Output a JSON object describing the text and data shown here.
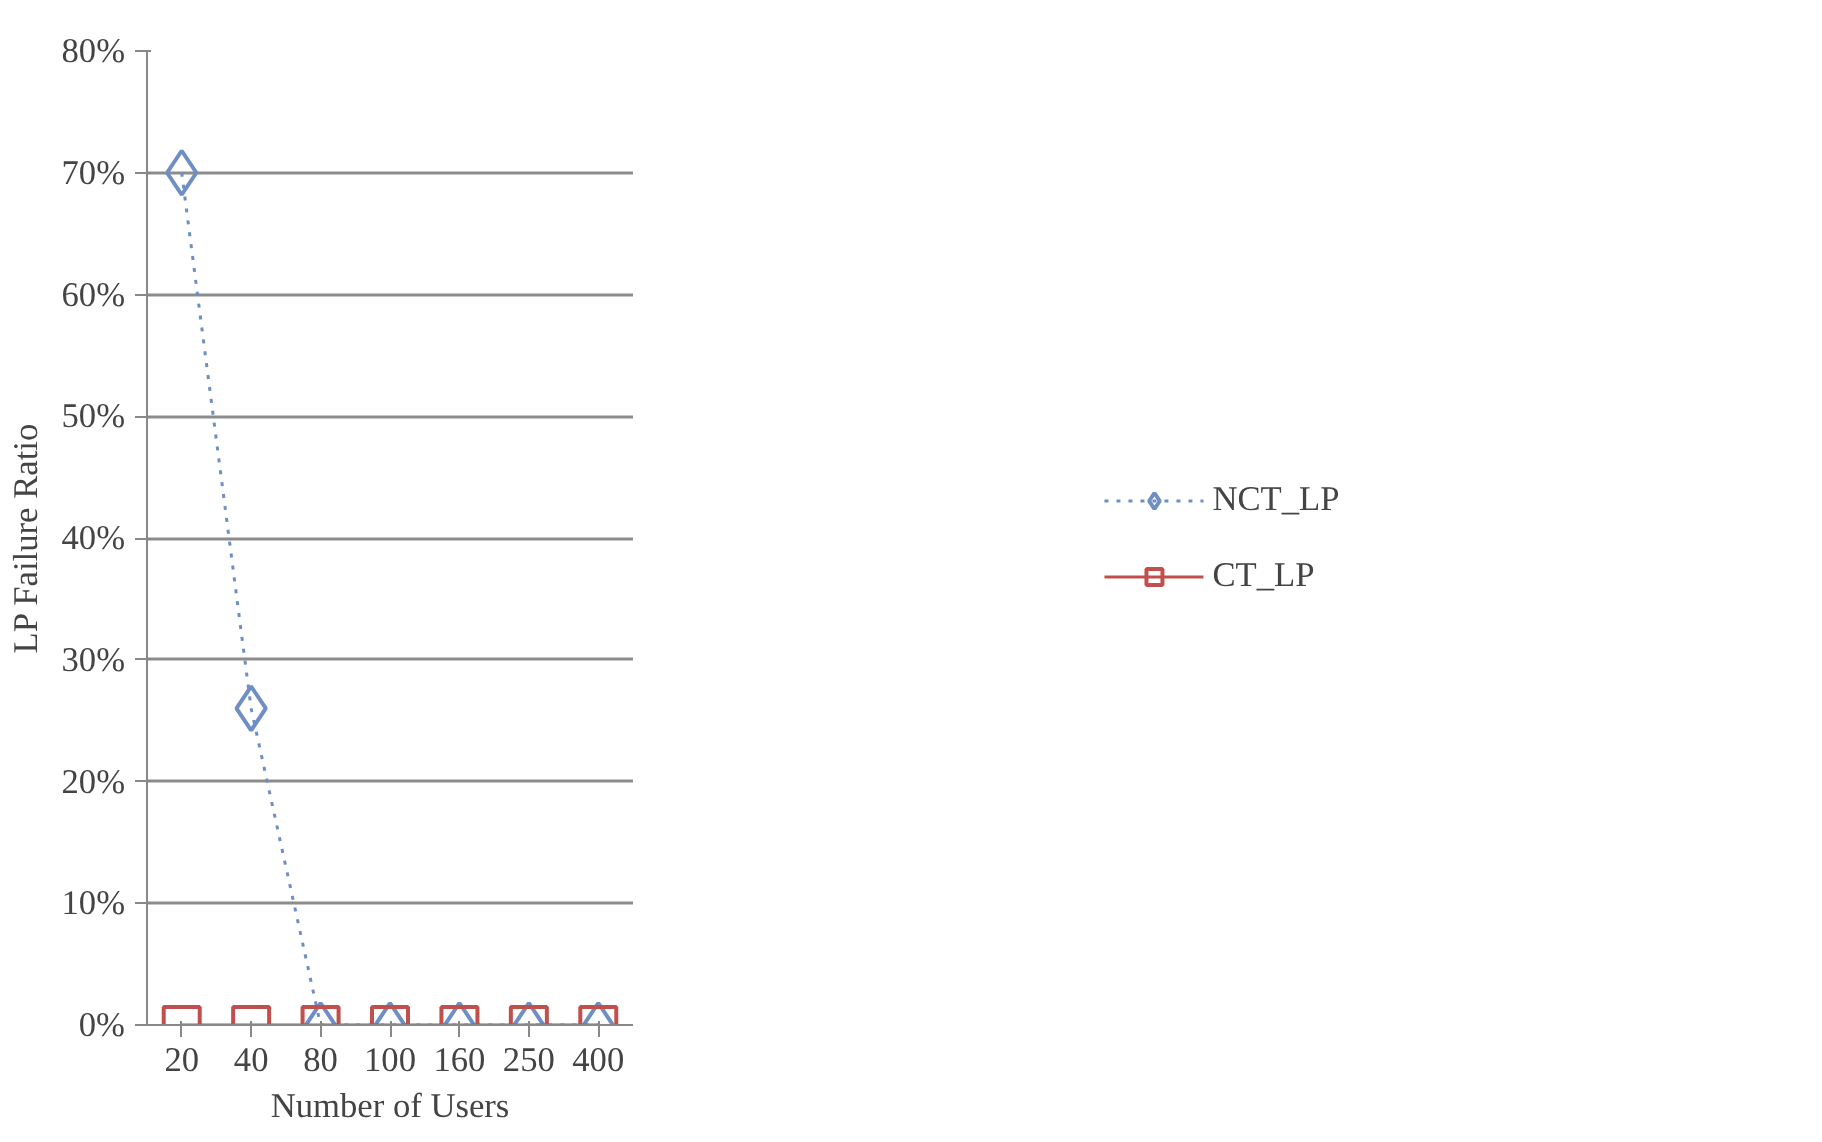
{
  "chart_data": {
    "type": "line",
    "xlabel": "Number of Users",
    "ylabel": "LP Failure Ratio",
    "categories": [
      "20",
      "40",
      "80",
      "100",
      "160",
      "250",
      "400"
    ],
    "series": [
      {
        "name": "NCT_LP",
        "color": "#6f8fc4",
        "values": [
          70,
          26,
          0,
          0,
          0,
          0,
          0
        ],
        "marker": "diamond",
        "line_style": "dotted"
      },
      {
        "name": "CT_LP",
        "color": "#c0504d",
        "values": [
          0,
          0,
          0,
          0,
          0,
          0,
          0
        ],
        "marker": "square",
        "line_style": "solid"
      }
    ],
    "ylim": [
      0,
      80
    ],
    "yticks": [
      {
        "value": 0,
        "label": "0%"
      },
      {
        "value": 10,
        "label": "10%"
      },
      {
        "value": 20,
        "label": "20%"
      },
      {
        "value": 30,
        "label": "30%"
      },
      {
        "value": 40,
        "label": "40%"
      },
      {
        "value": 50,
        "label": "50%"
      },
      {
        "value": 60,
        "label": "60%"
      },
      {
        "value": 70,
        "label": "70%"
      },
      {
        "value": 80,
        "label": "80%"
      }
    ],
    "grid": "y",
    "legend": "right"
  }
}
